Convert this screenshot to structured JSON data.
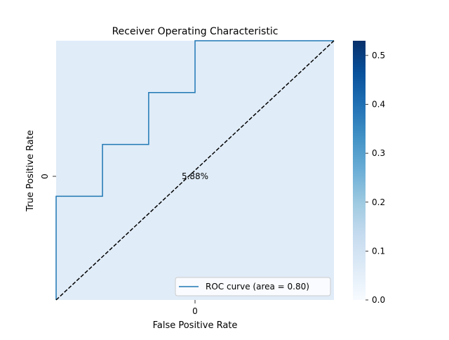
{
  "chart_data": {
    "type": "heatmap",
    "title": "Receiver Operating Characteristic",
    "xlabel": "False Positive Rate",
    "ylabel": "True Positive Rate",
    "x_tick_labels": [
      "0"
    ],
    "y_tick_labels": [
      "0"
    ],
    "heatmap_cells": [
      [
        0.0588
      ]
    ],
    "cell_annotation": "5.88%",
    "cell_color": "#e0ecf8",
    "colorbar": {
      "colormap": "Blues",
      "range": [
        0,
        0.53
      ],
      "ticks": [
        0.0,
        0.1,
        0.2,
        0.3,
        0.4,
        0.5
      ],
      "tick_labels": [
        "0.0",
        "0.1",
        "0.2",
        "0.3",
        "0.4",
        "0.5"
      ]
    },
    "series": [
      {
        "name": "ROC curve (area = 0.80)",
        "kind": "step-line",
        "color": "#1f77b4",
        "fpr": [
          0,
          0,
          0.167,
          0.167,
          0.333,
          0.333,
          0.5,
          0.5,
          1.0
        ],
        "tpr": [
          0,
          0.4,
          0.4,
          0.6,
          0.6,
          0.8,
          0.8,
          1.0,
          1.0
        ]
      },
      {
        "kind": "diagonal-dashed",
        "color": "#000000",
        "fpr": [
          0,
          1
        ],
        "tpr": [
          0,
          1
        ]
      }
    ],
    "legend": {
      "position": "lower-right",
      "label": "ROC curve (area = 0.80)"
    }
  }
}
